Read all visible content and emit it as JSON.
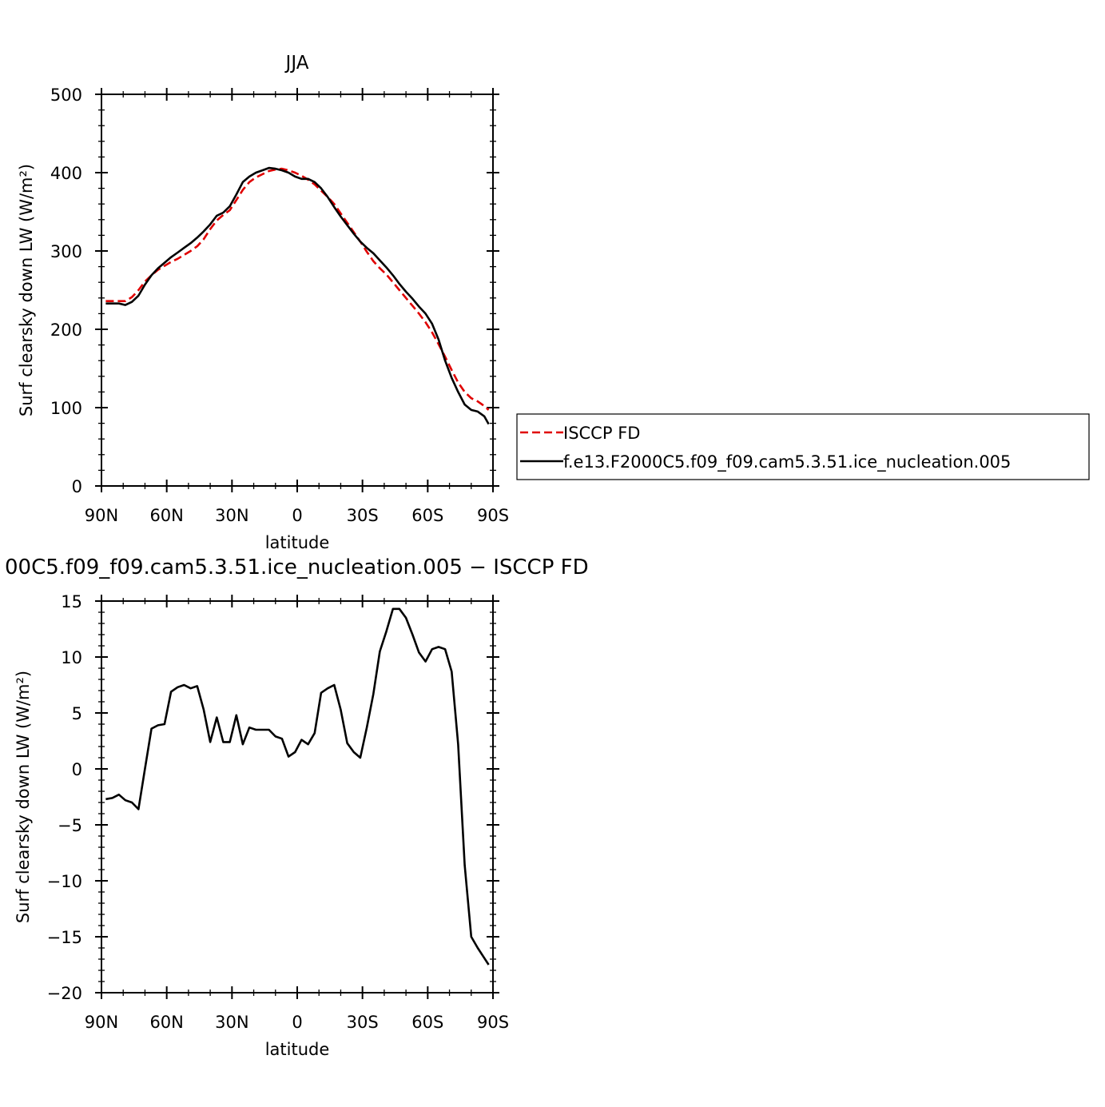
{
  "chart_data": [
    {
      "type": "line",
      "title": "JJA",
      "xlabel": "latitude",
      "ylabel": "Surf clearsky down LW (W/m²)",
      "xlim": [
        90,
        -90
      ],
      "ylim": [
        0,
        500
      ],
      "xticks": [
        90,
        60,
        30,
        0,
        -30,
        -60,
        -90
      ],
      "xtick_labels": [
        "90N",
        "60N",
        "30N",
        "0",
        "30S",
        "60S",
        "90S"
      ],
      "yticks": [
        0,
        100,
        200,
        300,
        400,
        500
      ],
      "ytick_labels": [
        "0",
        "100",
        "200",
        "300",
        "400",
        "500"
      ],
      "grid": false,
      "legend_position": "right",
      "series": [
        {
          "name": "ISCCP FD",
          "color": "#e00000",
          "dash": "dashed",
          "x": [
            88,
            85,
            82,
            79,
            76,
            73,
            70,
            67,
            64,
            61,
            58,
            55,
            52,
            49,
            46,
            43,
            40,
            37,
            34,
            31,
            28,
            25,
            22,
            19,
            16,
            13,
            10,
            7,
            4,
            1,
            -2,
            -5,
            -8,
            -11,
            -14,
            -17,
            -20,
            -23,
            -26,
            -29,
            -32,
            -35,
            -38,
            -41,
            -44,
            -47,
            -50,
            -53,
            -56,
            -59,
            -62,
            -65,
            -68,
            -71,
            -74,
            -77,
            -80,
            -83,
            -86,
            -88
          ],
          "y": [
            236,
            236,
            236,
            236,
            241,
            250,
            261,
            269,
            276,
            281,
            286,
            290,
            295,
            300,
            306,
            315,
            328,
            339,
            346,
            352,
            365,
            378,
            388,
            394,
            398,
            402,
            404,
            405,
            403,
            400,
            396,
            391,
            385,
            377,
            369,
            360,
            348,
            336,
            324,
            312,
            299,
            287,
            278,
            270,
            260,
            250,
            240,
            230,
            220,
            209,
            196,
            181,
            165,
            148,
            132,
            120,
            112,
            108,
            102,
            97
          ]
        },
        {
          "name": "f.e13.F2000C5.f09_f09.cam5.3.51.ice_nucleation.005",
          "color": "#000000",
          "dash": "solid",
          "x": [
            88,
            85,
            82,
            79,
            76,
            73,
            70,
            67,
            64,
            61,
            58,
            55,
            52,
            49,
            46,
            43,
            40,
            37,
            34,
            31,
            28,
            25,
            22,
            19,
            16,
            13,
            10,
            7,
            4,
            1,
            -2,
            -5,
            -8,
            -11,
            -14,
            -17,
            -20,
            -23,
            -26,
            -29,
            -32,
            -35,
            -38,
            -41,
            -44,
            -47,
            -50,
            -53,
            -56,
            -59,
            -62,
            -65,
            -68,
            -71,
            -74,
            -77,
            -80,
            -83,
            -86,
            -88
          ],
          "y": [
            233,
            233,
            233,
            231,
            235,
            243,
            257,
            269,
            278,
            285,
            292,
            298,
            304,
            310,
            317,
            325,
            334,
            345,
            349,
            357,
            372,
            388,
            395,
            400,
            403,
            406,
            405,
            403,
            400,
            395,
            392,
            392,
            388,
            380,
            369,
            356,
            344,
            333,
            322,
            312,
            304,
            297,
            288,
            279,
            269,
            258,
            248,
            239,
            229,
            220,
            207,
            187,
            160,
            138,
            120,
            104,
            97,
            95,
            89,
            79
          ]
        }
      ]
    },
    {
      "type": "line",
      "title": "00C5.f09_f09.cam5.3.51.ice_nucleation.005 − ISCCP FD",
      "xlabel": "latitude",
      "ylabel": "Surf clearsky down LW (W/m²)",
      "xlim": [
        90,
        -90
      ],
      "ylim": [
        -20,
        15
      ],
      "xticks": [
        90,
        60,
        30,
        0,
        -30,
        -60,
        -90
      ],
      "xtick_labels": [
        "90N",
        "60N",
        "30N",
        "0",
        "30S",
        "60S",
        "90S"
      ],
      "yticks": [
        15,
        10,
        5,
        0,
        -5,
        -10,
        -15,
        -20
      ],
      "ytick_labels": [
        "15",
        "10",
        "5",
        "0",
        "−5",
        "−10",
        "−15",
        "−20"
      ],
      "grid": false,
      "series": [
        {
          "color": "#000000",
          "dash": "solid",
          "x": [
            88,
            85,
            82,
            79,
            76,
            73,
            70,
            67,
            64,
            61,
            58,
            55,
            52,
            49,
            46,
            43,
            40,
            37,
            34,
            31,
            28,
            25,
            22,
            19,
            16,
            13,
            10,
            7,
            4,
            1,
            -2,
            -5,
            -8,
            -11,
            -14,
            -17,
            -20,
            -23,
            -26,
            -29,
            -32,
            -35,
            -38,
            -41,
            -44,
            -47,
            -50,
            -53,
            -56,
            -59,
            -62,
            -65,
            -68,
            -71,
            -74,
            -77,
            -80,
            -83,
            -86,
            -88
          ],
          "y": [
            -2.7,
            -2.6,
            -2.3,
            -2.8,
            -3.0,
            -3.6,
            0.0,
            3.6,
            3.9,
            4.0,
            6.9,
            7.3,
            7.5,
            7.2,
            7.4,
            5.3,
            2.4,
            4.6,
            2.4,
            2.4,
            4.8,
            2.2,
            3.7,
            3.5,
            3.5,
            3.5,
            2.9,
            2.7,
            1.1,
            1.5,
            2.6,
            2.2,
            3.2,
            6.8,
            7.2,
            7.5,
            5.3,
            2.3,
            1.5,
            1.0,
            3.7,
            6.7,
            10.5,
            12.3,
            14.3,
            14.3,
            13.5,
            12.0,
            10.4,
            9.6,
            10.7,
            10.9,
            10.7,
            8.7,
            2.2,
            -8.6,
            -15.0,
            -16.0,
            -16.9,
            -17.5
          ]
        }
      ]
    }
  ]
}
